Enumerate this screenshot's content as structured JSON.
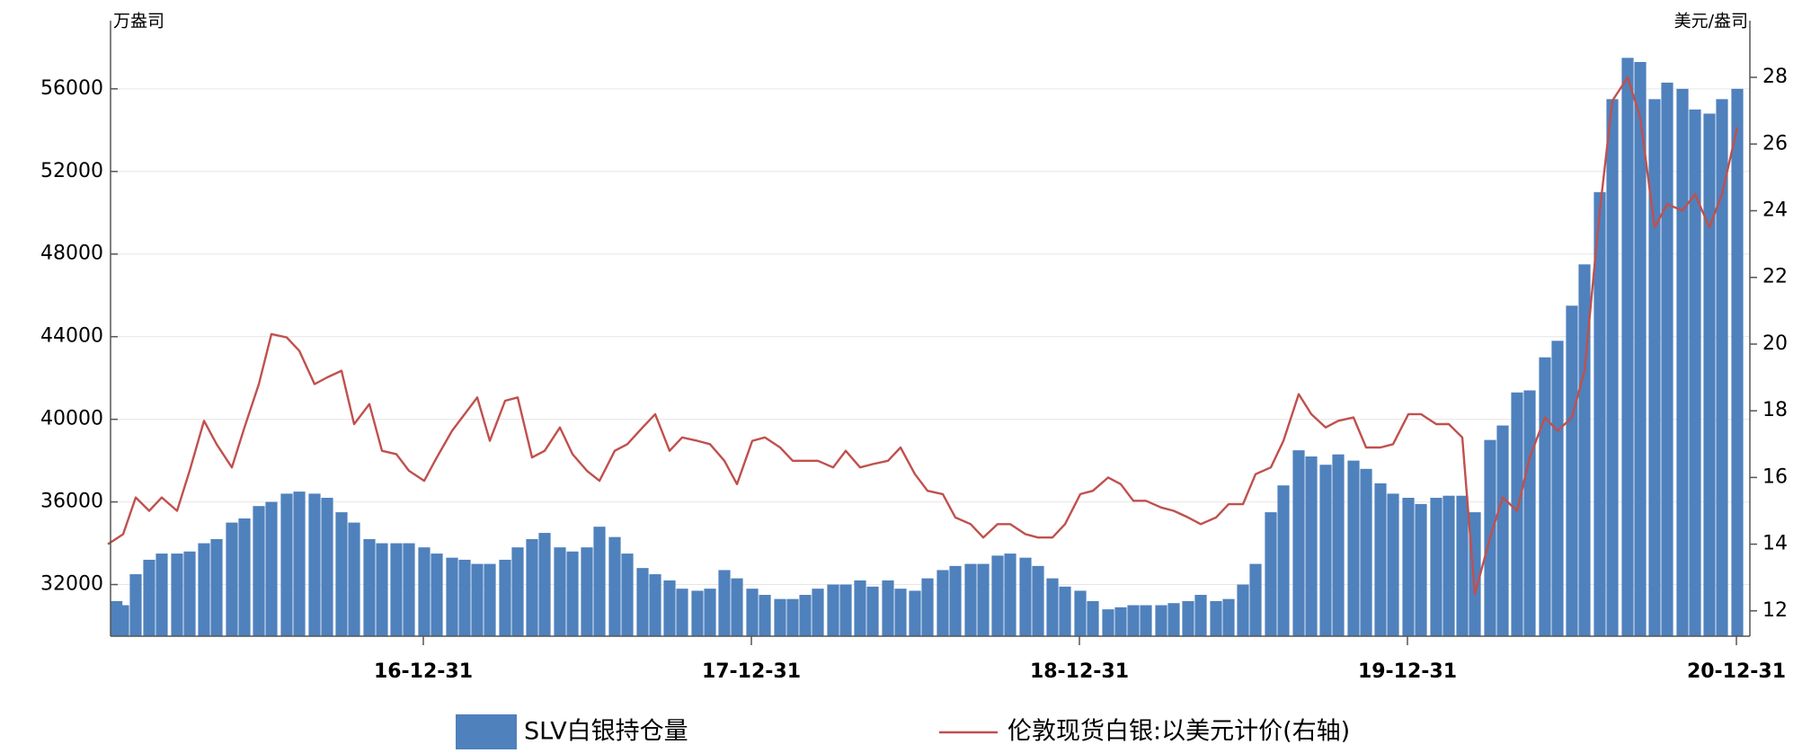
{
  "chart_data": {
    "type": "bar-line",
    "y_label": "万盎司",
    "y2_label": "美元/盎司",
    "x": [
      "16-01-15",
      "16-02-01",
      "16-02-15",
      "16-03-01",
      "16-03-15",
      "16-04-01",
      "16-04-15",
      "16-05-01",
      "16-05-15",
      "16-06-01",
      "16-06-15",
      "16-07-01",
      "16-07-15",
      "16-08-01",
      "16-08-15",
      "16-09-01",
      "16-09-15",
      "16-10-01",
      "16-10-15",
      "16-11-01",
      "16-11-15",
      "16-12-01",
      "16-12-15",
      "17-01-01",
      "17-01-15",
      "17-02-01",
      "17-02-15",
      "17-03-01",
      "17-03-15",
      "17-04-01",
      "17-04-15",
      "17-05-01",
      "17-05-15",
      "17-06-01",
      "17-06-15",
      "17-07-01",
      "17-07-15",
      "17-08-01",
      "17-08-15",
      "17-09-01",
      "17-09-15",
      "17-10-01",
      "17-10-15",
      "17-11-01",
      "17-11-15",
      "17-12-01",
      "17-12-15",
      "18-01-01",
      "18-01-15",
      "18-02-01",
      "18-02-15",
      "18-03-01",
      "18-03-15",
      "18-04-01",
      "18-04-15",
      "18-05-01",
      "18-05-15",
      "18-06-01",
      "18-06-15",
      "18-07-01",
      "18-07-15",
      "18-08-01",
      "18-08-15",
      "18-09-01",
      "18-09-15",
      "18-10-01",
      "18-10-15",
      "18-11-01",
      "18-11-15",
      "18-12-01",
      "18-12-15",
      "19-01-01",
      "19-01-15",
      "19-02-01",
      "19-02-15",
      "19-03-01",
      "19-03-15",
      "19-04-01",
      "19-04-15",
      "19-05-01",
      "19-05-15",
      "19-06-01",
      "19-06-15",
      "19-07-01",
      "19-07-15",
      "19-08-01",
      "19-08-15",
      "19-09-01",
      "19-09-15",
      "19-10-01",
      "19-10-15",
      "19-11-01",
      "19-11-15",
      "19-12-01",
      "19-12-15",
      "20-01-01",
      "20-01-15",
      "20-02-01",
      "20-02-15",
      "20-03-01",
      "20-03-15",
      "20-04-01",
      "20-04-15",
      "20-05-01",
      "20-05-15",
      "20-06-01",
      "20-06-15",
      "20-07-01",
      "20-07-15",
      "20-08-01",
      "20-08-15",
      "20-09-01",
      "20-09-15",
      "20-10-01",
      "20-10-15",
      "20-11-01",
      "20-11-15",
      "20-12-01",
      "20-12-15",
      "21-01-01"
    ],
    "series": [
      {
        "name": "SLV白银持仓量",
        "type": "bar",
        "color": "#4f81bd",
        "values": [
          31200,
          31000,
          32500,
          33200,
          33500,
          33500,
          33600,
          34000,
          34200,
          35000,
          35200,
          35800,
          36000,
          36400,
          36500,
          36400,
          36200,
          35500,
          35000,
          34200,
          34000,
          34000,
          34000,
          33800,
          33500,
          33300,
          33200,
          33000,
          33000,
          33200,
          33800,
          34200,
          34500,
          33800,
          33600,
          33800,
          34800,
          34300,
          33500,
          32800,
          32500,
          32200,
          31800,
          31700,
          31800,
          32700,
          32300,
          31800,
          31500,
          31300,
          31300,
          31500,
          31800,
          32000,
          32000,
          32200,
          31900,
          32200,
          31800,
          31700,
          32300,
          32700,
          32900,
          33000,
          33000,
          33400,
          33500,
          33300,
          32900,
          32300,
          31900,
          31700,
          31200,
          30800,
          30900,
          31000,
          31000,
          31000,
          31100,
          31200,
          31500,
          31200,
          31300,
          32000,
          33000,
          35500,
          36800,
          38500,
          38200,
          37800,
          38300,
          38000,
          37600,
          36900,
          36400,
          36200,
          35900,
          36200,
          36300,
          36300,
          35500,
          39000,
          39700,
          41300,
          41400,
          43000,
          43800,
          45500,
          47500,
          51000,
          55500,
          57500,
          57300,
          55500,
          56300,
          56000,
          55000,
          54800,
          55500,
          56000
        ]
      },
      {
        "name": "伦敦现货白银:以美元计价(右轴)",
        "type": "line",
        "axis": "y2",
        "color": "#c0504d",
        "values": [
          14.0,
          14.3,
          15.4,
          15.0,
          15.4,
          15.0,
          16.2,
          17.7,
          17.0,
          16.3,
          17.5,
          18.8,
          20.3,
          20.2,
          19.8,
          18.8,
          19.0,
          19.2,
          17.6,
          18.2,
          16.8,
          16.7,
          16.2,
          15.9,
          16.6,
          17.4,
          17.9,
          18.4,
          17.1,
          18.3,
          18.4,
          16.6,
          16.8,
          17.5,
          16.7,
          16.2,
          15.9,
          16.8,
          17.0,
          17.5,
          17.9,
          16.8,
          17.2,
          17.1,
          17.0,
          16.5,
          15.8,
          17.1,
          17.2,
          16.9,
          16.5,
          16.5,
          16.5,
          16.3,
          16.8,
          16.3,
          16.4,
          16.5,
          16.9,
          16.1,
          15.6,
          15.5,
          14.8,
          14.6,
          14.2,
          14.6,
          14.6,
          14.3,
          14.2,
          14.2,
          14.6,
          15.5,
          15.6,
          16.0,
          15.8,
          15.3,
          15.3,
          15.1,
          15.0,
          14.8,
          14.6,
          14.8,
          15.2,
          15.2,
          16.1,
          16.3,
          17.1,
          18.5,
          17.9,
          17.5,
          17.7,
          17.8,
          16.9,
          16.9,
          17.0,
          17.9,
          17.9,
          17.6,
          17.6,
          17.2,
          12.5,
          14.2,
          15.4,
          15.0,
          16.6,
          17.8,
          17.4,
          17.8,
          19.2,
          24.0,
          27.3,
          28.0,
          26.8,
          23.5,
          24.2,
          24.0,
          24.5,
          23.5,
          24.5,
          26.5
        ]
      }
    ],
    "xlim": [
      "16-01-18",
      "21-01-15"
    ],
    "xticks": [
      "16-12-31",
      "17-12-31",
      "18-12-31",
      "19-12-31",
      "20-12-31"
    ],
    "ylim": [
      29500,
      59300
    ],
    "yticks": [
      32000,
      36000,
      40000,
      44000,
      48000,
      52000,
      56000
    ],
    "y2lim": [
      11.24,
      29.7
    ],
    "y2ticks": [
      12,
      14,
      16,
      18,
      20,
      22,
      24,
      26,
      28
    ],
    "grid": true
  }
}
